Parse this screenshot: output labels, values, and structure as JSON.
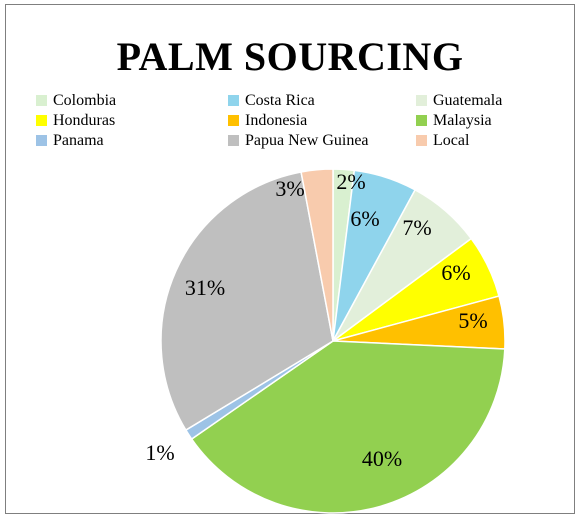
{
  "chart_data": {
    "type": "pie",
    "title": "PALM SOURCING",
    "legend_position": "top",
    "slices": [
      {
        "name": "Colombia",
        "value": 2,
        "label": "2%",
        "color": "#d9f0d0"
      },
      {
        "name": "Costa Rica",
        "value": 6,
        "label": "6%",
        "color": "#8fd4ec"
      },
      {
        "name": "Guatemala",
        "value": 7,
        "label": "7%",
        "color": "#e2efda"
      },
      {
        "name": "Honduras",
        "value": 6,
        "label": "6%",
        "color": "#ffff00"
      },
      {
        "name": "Indonesia",
        "value": 5,
        "label": "5%",
        "color": "#ffc000"
      },
      {
        "name": "Malaysia",
        "value": 40,
        "label": "40%",
        "color": "#92d050"
      },
      {
        "name": "Panama",
        "value": 1,
        "label": "1%",
        "color": "#9dc3e6"
      },
      {
        "name": "Papua New Guinea",
        "value": 31,
        "label": "31%",
        "color": "#bfbfbf"
      },
      {
        "name": "Local",
        "value": 3,
        "label": "3%",
        "color": "#f8cbad"
      }
    ]
  }
}
